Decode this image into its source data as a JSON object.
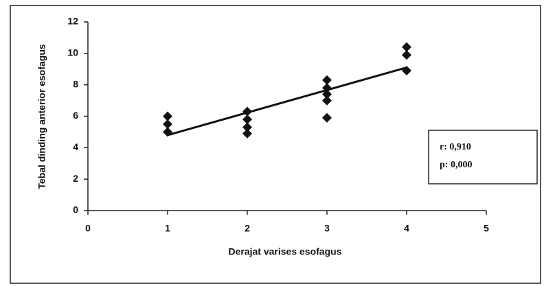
{
  "chart_data": {
    "type": "scatter",
    "x_label": "Derajat varises esofagus",
    "y_label": "Tebal dinding anterior esofagus",
    "x": [
      1,
      1,
      1,
      2,
      2,
      2,
      2,
      3,
      3,
      3,
      3,
      3,
      4,
      4,
      4
    ],
    "y": [
      6.0,
      5.5,
      5.0,
      6.3,
      5.8,
      5.3,
      4.9,
      8.3,
      7.8,
      7.4,
      7.0,
      5.9,
      10.4,
      9.9,
      8.9
    ],
    "color": "#111111",
    "trend_line": {
      "x": [
        1,
        4
      ],
      "y": [
        4.8,
        9.1
      ]
    },
    "annotation": [
      "r: 0,910",
      "p: 0,000"
    ],
    "xlim": [
      0,
      5
    ],
    "xticks": [
      0,
      1,
      2,
      3,
      4,
      5
    ],
    "ylim": [
      0,
      12
    ],
    "yticks": [
      0,
      2,
      4,
      6,
      8,
      10,
      12
    ]
  }
}
